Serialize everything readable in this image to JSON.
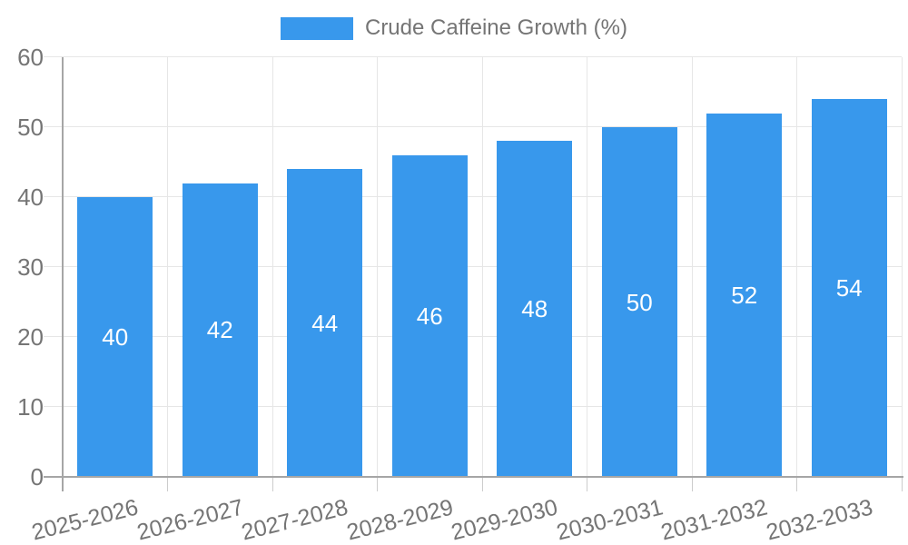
{
  "chart_data": {
    "type": "bar",
    "title": "Crude Caffeine Growth (%)",
    "categories": [
      "2025-2026",
      "2026-2027",
      "2027-2028",
      "2028-2029",
      "2029-2030",
      "2030-2031",
      "2031-2032",
      "2032-2033"
    ],
    "series": [
      {
        "name": "Crude Caffeine Growth (%)",
        "color": "#3898ec",
        "values": [
          40,
          42,
          44,
          46,
          48,
          50,
          52,
          54
        ]
      }
    ],
    "bar_value_labels_visible": true,
    "xlabel": "",
    "ylabel": "",
    "ylim": [
      0,
      60
    ],
    "yticks": [
      0,
      10,
      20,
      30,
      40,
      50,
      60
    ],
    "grid": true,
    "legend": {
      "position": "top",
      "entries": [
        {
          "label": "Crude Caffeine Growth (%)",
          "color": "#3898ec"
        }
      ]
    }
  },
  "colors": {
    "bar": "#3898ec",
    "grid": "#e6e6e6",
    "axis": "#a6a6a6",
    "x_tick": "#cccccc",
    "text": "#757575",
    "bar_label": "#ffffff",
    "background": "#ffffff"
  }
}
